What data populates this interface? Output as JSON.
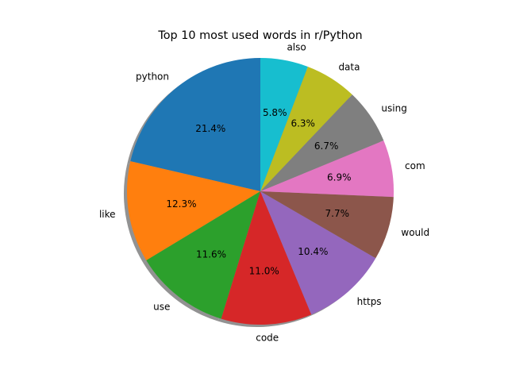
{
  "chart_data": {
    "type": "pie",
    "title": "Top 10 most used words in r/Python",
    "categories": [
      "python",
      "like",
      "use",
      "code",
      "https",
      "would",
      "com",
      "using",
      "data",
      "also"
    ],
    "values": [
      21.4,
      12.3,
      11.6,
      11.0,
      10.4,
      7.7,
      6.9,
      6.7,
      6.3,
      5.8
    ],
    "value_labels": [
      "21.4%",
      "12.3%",
      "11.6%",
      "11.0%",
      "10.4%",
      "7.7%",
      "6.9%",
      "6.7%",
      "6.3%",
      "5.8%"
    ],
    "colors": [
      "#1f77b4",
      "#ff7f0e",
      "#2ca02c",
      "#d62728",
      "#9467bd",
      "#8c564b",
      "#e377c2",
      "#7f7f7f",
      "#bcbd22",
      "#17becf"
    ],
    "start_angle_deg": 90,
    "direction": "counterclockwise",
    "shadow": true,
    "legend": "none"
  }
}
